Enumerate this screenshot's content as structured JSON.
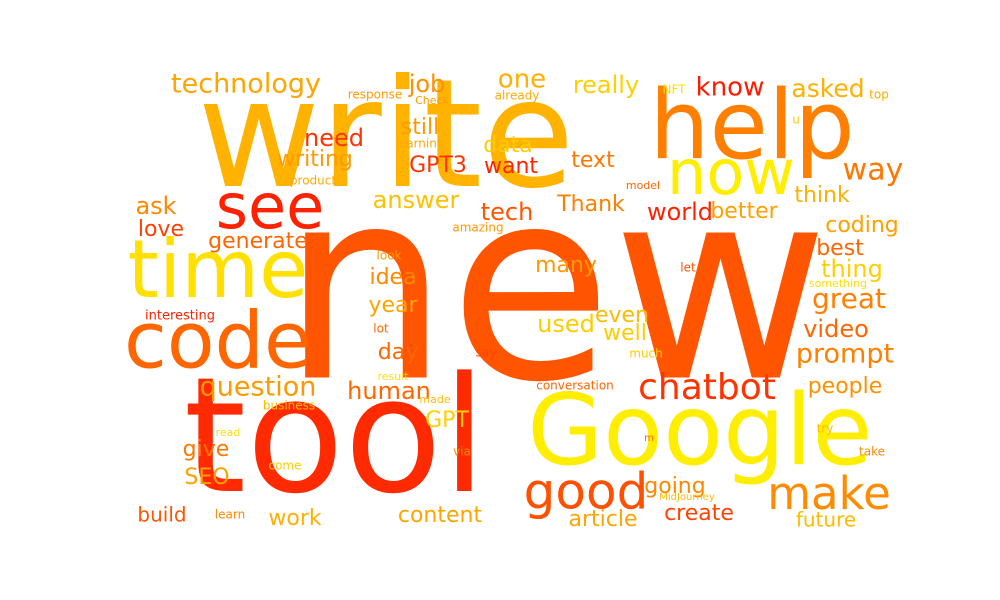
{
  "words": [
    {
      "id": "new",
      "text": "new",
      "color": "#ff5500"
    },
    {
      "id": "write",
      "text": "write",
      "color": "#ffb300"
    },
    {
      "id": "tool",
      "text": "tool",
      "color": "#ff2a00"
    },
    {
      "id": "google",
      "text": "Google",
      "color": "#ffee00"
    },
    {
      "id": "help",
      "text": "help",
      "color": "#ff8000"
    },
    {
      "id": "code",
      "text": "code",
      "color": "#ff6600"
    },
    {
      "id": "time",
      "text": "time",
      "color": "#ffe000"
    },
    {
      "id": "now",
      "text": "now",
      "color": "#ffee00"
    },
    {
      "id": "see",
      "text": "see",
      "color": "#ff2200"
    },
    {
      "id": "good",
      "text": "good",
      "color": "#ff5000"
    },
    {
      "id": "make",
      "text": "make",
      "color": "#ff8c00"
    },
    {
      "id": "chatbot",
      "text": "chatbot",
      "color": "#ff3300"
    },
    {
      "id": "question",
      "text": "question",
      "color": "#ff9900"
    },
    {
      "id": "technology",
      "text": "technology",
      "color": "#ffa500"
    },
    {
      "id": "way",
      "text": "way",
      "color": "#ff7700"
    },
    {
      "id": "great",
      "text": "great",
      "color": "#ff7f00"
    },
    {
      "id": "prompt",
      "text": "prompt",
      "color": "#ff8000"
    },
    {
      "id": "video",
      "text": "video",
      "color": "#ff6600"
    },
    {
      "id": "people",
      "text": "people",
      "color": "#ff9000"
    },
    {
      "id": "know",
      "text": "know",
      "color": "#ff1a00"
    },
    {
      "id": "asked",
      "text": "asked",
      "color": "#ffb000"
    },
    {
      "id": "one",
      "text": "one",
      "color": "#ffb000"
    },
    {
      "id": "really",
      "text": "really",
      "color": "#ffd000"
    },
    {
      "id": "job",
      "text": "job",
      "color": "#ff9000"
    },
    {
      "id": "need",
      "text": "need",
      "color": "#ff3300"
    },
    {
      "id": "writing",
      "text": "writing",
      "color": "#ff9900"
    },
    {
      "id": "still",
      "text": "still",
      "color": "#ff9900"
    },
    {
      "id": "gpt3",
      "text": "GPT3",
      "color": "#ff3300"
    },
    {
      "id": "want",
      "text": "want",
      "color": "#ff2200"
    },
    {
      "id": "data",
      "text": "data",
      "color": "#ffcc00"
    },
    {
      "id": "text",
      "text": "text",
      "color": "#ff7700"
    },
    {
      "id": "think",
      "text": "think",
      "color": "#ffb000"
    },
    {
      "id": "answer",
      "text": "answer",
      "color": "#ffc000"
    },
    {
      "id": "tech",
      "text": "tech",
      "color": "#ff5500"
    },
    {
      "id": "thank",
      "text": "Thank",
      "color": "#ff8000"
    },
    {
      "id": "world",
      "text": "world",
      "color": "#ff2200"
    },
    {
      "id": "better",
      "text": "better",
      "color": "#ffa000"
    },
    {
      "id": "coding",
      "text": "coding",
      "color": "#ffa000"
    },
    {
      "id": "best",
      "text": "best",
      "color": "#ff6600"
    },
    {
      "id": "thing",
      "text": "thing",
      "color": "#ffd000"
    },
    {
      "id": "ask",
      "text": "ask",
      "color": "#ff8800"
    },
    {
      "id": "love",
      "text": "love",
      "color": "#ff4000"
    },
    {
      "id": "generate",
      "text": "generate",
      "color": "#ff6600"
    },
    {
      "id": "idea",
      "text": "idea",
      "color": "#ff8800"
    },
    {
      "id": "many",
      "text": "many",
      "color": "#ff9900"
    },
    {
      "id": "year",
      "text": "year",
      "color": "#ffa500"
    },
    {
      "id": "used",
      "text": "used",
      "color": "#ffcc00"
    },
    {
      "id": "even",
      "text": "even",
      "color": "#ffbb00"
    },
    {
      "id": "well",
      "text": "well",
      "color": "#ffcc00"
    },
    {
      "id": "day",
      "text": "day",
      "color": "#ff6600"
    },
    {
      "id": "human",
      "text": "human",
      "color": "#ff6600"
    },
    {
      "id": "gpt",
      "text": "GPT",
      "color": "#ffd000"
    },
    {
      "id": "give",
      "text": "give",
      "color": "#ff7700"
    },
    {
      "id": "seo",
      "text": "SEO",
      "color": "#ffa000"
    },
    {
      "id": "going",
      "text": "going",
      "color": "#ff8800"
    },
    {
      "id": "create",
      "text": "create",
      "color": "#ff4400"
    },
    {
      "id": "article",
      "text": "article",
      "color": "#ffa500"
    },
    {
      "id": "future",
      "text": "future",
      "color": "#ffbb00"
    },
    {
      "id": "content",
      "text": "content",
      "color": "#ffa500"
    },
    {
      "id": "work",
      "text": "work",
      "color": "#ffb000"
    },
    {
      "id": "build",
      "text": "build",
      "color": "#ff5500"
    },
    {
      "id": "learn",
      "text": "learn",
      "color": "#ff8800"
    },
    {
      "id": "interesting",
      "text": "interesting",
      "color": "#ff2200"
    },
    {
      "id": "response",
      "text": "response",
      "color": "#ff9900"
    },
    {
      "id": "check",
      "text": "Check",
      "color": "#ff9900"
    },
    {
      "id": "already",
      "text": "already",
      "color": "#ffaa00"
    },
    {
      "id": "learning",
      "text": "learning",
      "color": "#ffaa00"
    },
    {
      "id": "product",
      "text": "product",
      "color": "#ffaa00"
    },
    {
      "id": "nft",
      "text": "NFT",
      "color": "#ffdd00"
    },
    {
      "id": "top",
      "text": "top",
      "color": "#ffaa00"
    },
    {
      "id": "u",
      "text": "u",
      "color": "#ffcc00"
    },
    {
      "id": "model",
      "text": "model",
      "color": "#ff6600"
    },
    {
      "id": "amazing",
      "text": "amazing",
      "color": "#ff9900"
    },
    {
      "id": "look",
      "text": "look",
      "color": "#ff9900"
    },
    {
      "id": "let",
      "text": "let",
      "color": "#ff5500"
    },
    {
      "id": "something",
      "text": "something",
      "color": "#ffdd00"
    },
    {
      "id": "lot",
      "text": "lot",
      "color": "#ff6600"
    },
    {
      "id": "say",
      "text": "say",
      "color": "#ff4400"
    },
    {
      "id": "much",
      "text": "much",
      "color": "#ffcc00"
    },
    {
      "id": "result",
      "text": "result",
      "color": "#ffdd00"
    },
    {
      "id": "made",
      "text": "made",
      "color": "#ffbb00"
    },
    {
      "id": "conversation",
      "text": "conversation",
      "color": "#ff6600"
    },
    {
      "id": "business",
      "text": "business",
      "color": "#ffbb00"
    },
    {
      "id": "read",
      "text": "read",
      "color": "#ffdd00"
    },
    {
      "id": "come",
      "text": "come",
      "color": "#ffcc00"
    },
    {
      "id": "via",
      "text": "via",
      "color": "#ff8800"
    },
    {
      "id": "m",
      "text": "m",
      "color": "#ff6600"
    },
    {
      "id": "try",
      "text": "try",
      "color": "#ffbb00"
    },
    {
      "id": "take",
      "text": "take",
      "color": "#ff8800"
    },
    {
      "id": "midjourney",
      "text": "MidJourney",
      "color": "#ffbb00"
    }
  ]
}
